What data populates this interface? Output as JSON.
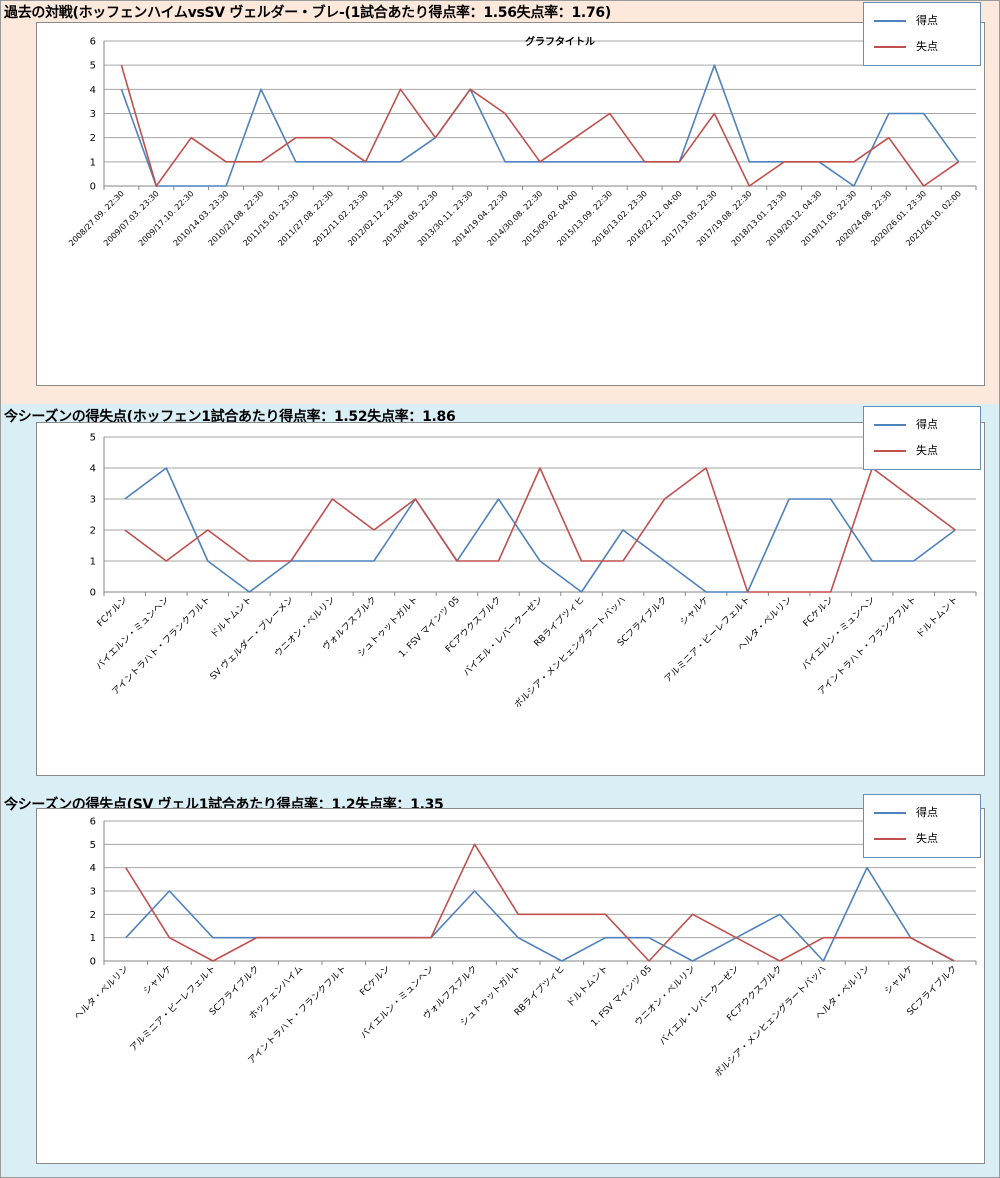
{
  "colors": {
    "section1_bg": "#fde9dc",
    "section_bg": "#daeef5",
    "goals": "#4f81bd",
    "conceded": "#c0504d",
    "grid": "#a6a6a6"
  },
  "legend": {
    "goals_label": "得点",
    "conceded_label": "失点"
  },
  "sections": [
    {
      "title": "過去の対戦(ホッフェンハイムvsSV ヴェルダー・ブレ-(1試合あたり得点率：1.56失点率：1.76)"
    },
    {
      "title": "今シーズンの得失点(ホッフェン1試合あたり得点率：1.52失点率：1.86"
    },
    {
      "title": "今シーズンの得失点(SV ヴェル1試合あたり得点率：1.2失点率：1.35"
    }
  ],
  "chart_data": [
    {
      "type": "line",
      "title": "グラフタイトル",
      "ylim": [
        0,
        6
      ],
      "yticks": [
        0,
        1,
        2,
        3,
        4,
        5,
        6
      ],
      "grid": true,
      "legend_position": "top-right",
      "categories": [
        "2008/27.09. 22:30",
        "2009/07.03. 23:30",
        "2009/17.10. 22:30",
        "2010/14.03. 23:30",
        "2010/21.08. 22:30",
        "2011/15.01. 23:30",
        "2011/27.08. 22:30",
        "2012/11.02. 23:30",
        "2012/02.12. 23:30",
        "2013/04.05. 22:30",
        "2013/30.11. 23:30",
        "2014/19.04. 22:30",
        "2014/30.08. 22:30",
        "2015/05.02. 04:00",
        "2015/13.09. 22:30",
        "2016/13.02. 23:30",
        "2016/22.12. 04:00",
        "2017/13.05. 22:30",
        "2017/19.08. 22:30",
        "2018/13.01. 23:30",
        "2019/20.12. 04:30",
        "2019/11.05. 22:30",
        "2020/24.08. 22:30",
        "2020/26.01. 23:30",
        "2021/26.10. 02:00"
      ],
      "series": [
        {
          "name": "得点",
          "values": [
            4,
            0,
            0,
            0,
            4,
            1,
            1,
            1,
            1,
            2,
            4,
            1,
            1,
            1,
            1,
            1,
            1,
            5,
            1,
            1,
            1,
            0,
            3,
            3,
            1
          ]
        },
        {
          "name": "失点",
          "values": [
            5,
            0,
            2,
            1,
            1,
            2,
            2,
            1,
            4,
            2,
            4,
            3,
            1,
            2,
            3,
            1,
            1,
            3,
            0,
            1,
            1,
            1,
            2,
            0,
            1
          ]
        }
      ]
    },
    {
      "type": "line",
      "title": "",
      "ylim": [
        0,
        5
      ],
      "yticks": [
        0,
        1,
        2,
        3,
        4,
        5
      ],
      "grid": true,
      "legend_position": "top-right",
      "categories": [
        "FCケルン",
        "バイエルン・ミュンヘン",
        "アイントラハト・フランクフルト",
        "ドルトムント",
        "SV ヴェルダー・ブレーメン",
        "ウニオン・ベルリン",
        "ヴォルフスブルク",
        "シュトゥットガルト",
        "1. FSV マインツ 05",
        "FCアウクスブルク",
        "バイエル・レバークーゼン",
        "RBライプツィヒ",
        "ボルシア・メンヒェングラートバッハ",
        "SCフライブルク",
        "シャルケ",
        "アルミニア・ビーレフェルト",
        "ヘルタ・ベルリン",
        "FCケルン",
        "バイエルン・ミュンヘン",
        "アイントラハト・フランクフルト",
        "ドルトムント"
      ],
      "series": [
        {
          "name": "得点",
          "values": [
            3,
            4,
            1,
            0,
            1,
            1,
            1,
            3,
            1,
            3,
            1,
            0,
            2,
            1,
            0,
            0,
            3,
            3,
            1,
            1,
            2
          ]
        },
        {
          "name": "失点",
          "values": [
            2,
            1,
            2,
            1,
            1,
            3,
            2,
            3,
            1,
            1,
            4,
            1,
            1,
            3,
            4,
            0,
            0,
            0,
            4,
            3,
            2
          ]
        }
      ]
    },
    {
      "type": "line",
      "title": "",
      "ylim": [
        0,
        6
      ],
      "yticks": [
        0,
        1,
        2,
        3,
        4,
        5,
        6
      ],
      "grid": true,
      "legend_position": "top-right",
      "categories": [
        "ヘルタ・ベルリン",
        "シャルケ",
        "アルミニア・ビーレフェルト",
        "SCフライブルク",
        "ホッフェンハイム",
        "アイントラハト・フランクフルト",
        "FCケルン",
        "バイエルン・ミュンヘン",
        "ヴォルフスブルク",
        "シュトゥットガルト",
        "RBライプツィヒ",
        "ドルトムント",
        "1. FSV マインツ 05",
        "ウニオン・ベルリン",
        "バイエル・レバークーゼン",
        "FCアウクスブルク",
        "ボルシア・メンヒェングラートバッハ",
        "ヘルタ・ベルリン",
        "シャルケ",
        "SCフライブルク"
      ],
      "series": [
        {
          "name": "得点",
          "values": [
            1,
            3,
            1,
            1,
            1,
            1,
            1,
            1,
            3,
            1,
            0,
            1,
            1,
            0,
            1,
            2,
            0,
            4,
            1,
            0
          ]
        },
        {
          "name": "失点",
          "values": [
            4,
            1,
            0,
            1,
            1,
            1,
            1,
            1,
            5,
            2,
            2,
            2,
            0,
            2,
            1,
            0,
            1,
            1,
            1,
            0
          ]
        }
      ]
    }
  ]
}
